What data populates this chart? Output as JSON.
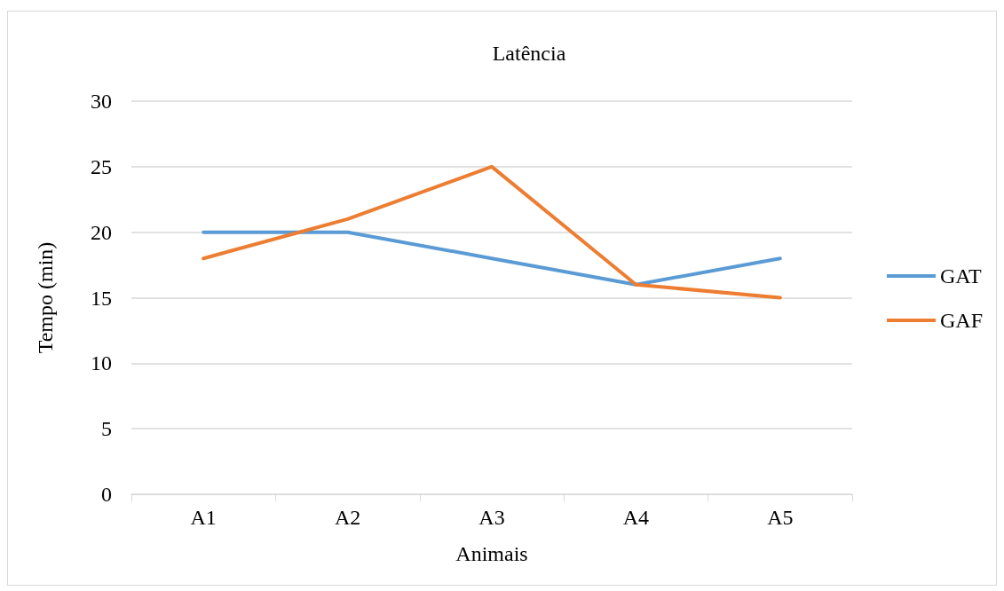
{
  "chart_data": {
    "type": "line",
    "title": "Latência",
    "xlabel": "Animais",
    "ylabel": "Tempo (min)",
    "categories": [
      "A1",
      "A2",
      "A3",
      "A4",
      "A5"
    ],
    "series": [
      {
        "name": "GAT",
        "color": "#5b9bd5",
        "values": [
          20,
          20,
          18,
          16,
          18
        ]
      },
      {
        "name": "GAF",
        "color": "#ed7d31",
        "values": [
          18,
          21,
          25,
          16,
          15
        ]
      }
    ],
    "ylim": [
      0,
      30
    ],
    "yticks": [
      0,
      5,
      10,
      15,
      20,
      25,
      30
    ],
    "grid": "y",
    "legend": "right",
    "marker": "none",
    "line_style": "solid"
  }
}
